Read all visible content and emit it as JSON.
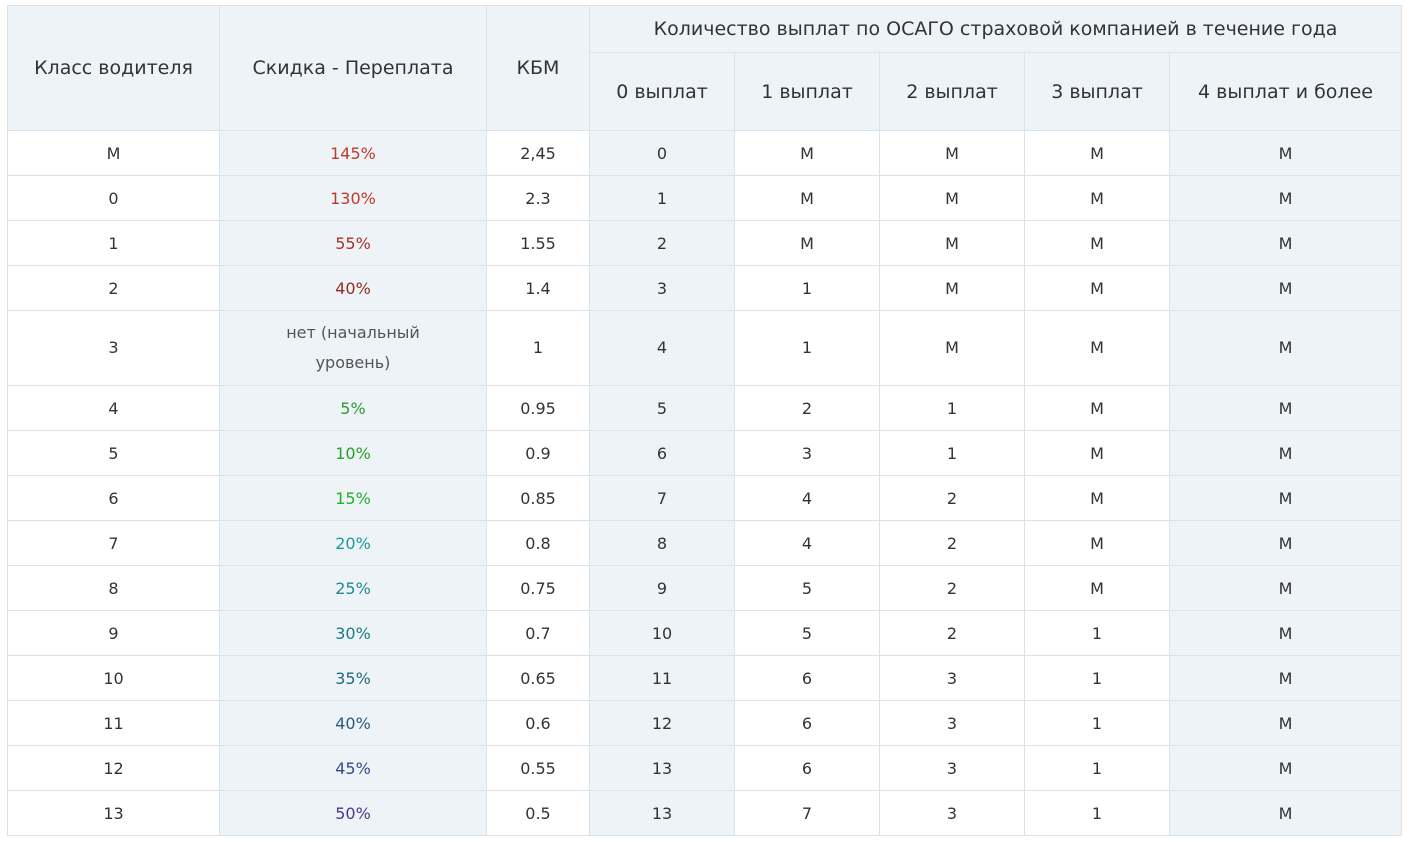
{
  "header": {
    "class": "Класс водителя",
    "discount": "Скидка - Переплата",
    "kbm": "КБМ",
    "group": "Количество выплат по ОСАГО страховой компанией в течение года",
    "sub": [
      "0 выплат",
      "1 выплат",
      "2 выплат",
      "3 выплат",
      "4 выплат и более"
    ]
  },
  "rows": [
    {
      "class": "М",
      "discount": "145%",
      "color": "#c0392b",
      "kbm": "2,45",
      "p": [
        "0",
        "М",
        "М",
        "М",
        "М"
      ]
    },
    {
      "class": "0",
      "discount": "130%",
      "color": "#c0392b",
      "kbm": "2.3",
      "p": [
        "1",
        "М",
        "М",
        "М",
        "М"
      ]
    },
    {
      "class": "1",
      "discount": "55%",
      "color": "#a93226",
      "kbm": "1.55",
      "p": [
        "2",
        "М",
        "М",
        "М",
        "М"
      ]
    },
    {
      "class": "2",
      "discount": "40%",
      "color": "#922b21",
      "kbm": "1.4",
      "p": [
        "3",
        "1",
        "М",
        "М",
        "М"
      ]
    },
    {
      "class": "3",
      "discount": "нет (начальный уровень)",
      "color": "#333333",
      "kbm": "1",
      "p": [
        "4",
        "1",
        "М",
        "М",
        "М"
      ]
    },
    {
      "class": "4",
      "discount": "5%",
      "color": "#2e9b2e",
      "kbm": "0.95",
      "p": [
        "5",
        "2",
        "1",
        "М",
        "М"
      ]
    },
    {
      "class": "5",
      "discount": "10%",
      "color": "#27a327",
      "kbm": "0.9",
      "p": [
        "6",
        "3",
        "1",
        "М",
        "М"
      ]
    },
    {
      "class": "6",
      "discount": "15%",
      "color": "#22b022",
      "kbm": "0.85",
      "p": [
        "7",
        "4",
        "2",
        "М",
        "М"
      ]
    },
    {
      "class": "7",
      "discount": "20%",
      "color": "#1a9aa0",
      "kbm": "0.8",
      "p": [
        "8",
        "4",
        "2",
        "М",
        "М"
      ]
    },
    {
      "class": "8",
      "discount": "25%",
      "color": "#1d8a94",
      "kbm": "0.75",
      "p": [
        "9",
        "5",
        "2",
        "М",
        "М"
      ]
    },
    {
      "class": "9",
      "discount": "30%",
      "color": "#1f7a87",
      "kbm": "0.7",
      "p": [
        "10",
        "5",
        "2",
        "1",
        "М"
      ]
    },
    {
      "class": "10",
      "discount": "35%",
      "color": "#236a80",
      "kbm": "0.65",
      "p": [
        "11",
        "6",
        "3",
        "1",
        "М"
      ]
    },
    {
      "class": "11",
      "discount": "40%",
      "color": "#2a5a7e",
      "kbm": "0.6",
      "p": [
        "12",
        "6",
        "3",
        "1",
        "М"
      ]
    },
    {
      "class": "12",
      "discount": "45%",
      "color": "#344b86",
      "kbm": "0.55",
      "p": [
        "13",
        "6",
        "3",
        "1",
        "М"
      ]
    },
    {
      "class": "13",
      "discount": "50%",
      "color": "#4a3a8e",
      "kbm": "0.5",
      "p": [
        "13",
        "7",
        "3",
        "1",
        "М"
      ]
    }
  ]
}
